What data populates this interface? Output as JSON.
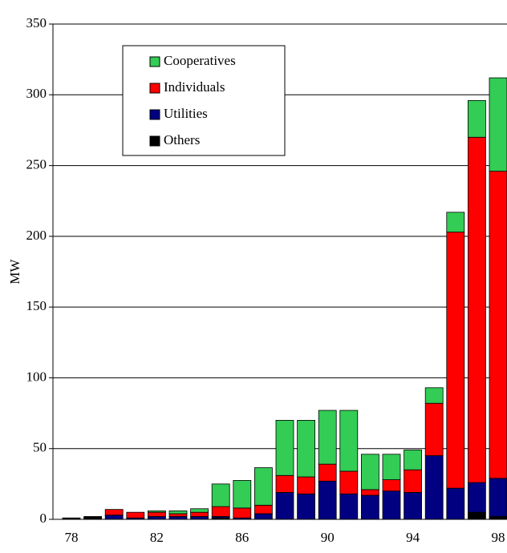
{
  "chart_data": {
    "type": "stacked-bar",
    "y_label": "MW",
    "categories": [
      "78",
      null,
      null,
      null,
      "82",
      null,
      null,
      null,
      "86",
      null,
      null,
      null,
      "90",
      null,
      null,
      null,
      "94",
      null,
      null,
      null,
      "98"
    ],
    "series": [
      {
        "name": "Cooperatives",
        "color": "#33cc55",
        "values": [
          0,
          0,
          0,
          0,
          1,
          2,
          2.5,
          16,
          19.5,
          26.5,
          39,
          40,
          38,
          43,
          25,
          18,
          14,
          11,
          14,
          26,
          66
        ]
      },
      {
        "name": "Individuals",
        "color": "#ff0000",
        "values": [
          0,
          0,
          4,
          4,
          3,
          2,
          3,
          7,
          7,
          6,
          12,
          12,
          12,
          16,
          4,
          8,
          16,
          37,
          181,
          244,
          217
        ]
      },
      {
        "name": "Utilities",
        "color": "#000080",
        "values": [
          0,
          0,
          3,
          1,
          2,
          2,
          2,
          1,
          1,
          4,
          19,
          18,
          27,
          18,
          17,
          20,
          19,
          45,
          22,
          21,
          27
        ]
      },
      {
        "name": "Others",
        "color": "#000000",
        "values": [
          1,
          2,
          0,
          0,
          0,
          0,
          0,
          1,
          0,
          0,
          0,
          0,
          0,
          0,
          0,
          0,
          0,
          0,
          0,
          5,
          2
        ]
      }
    ],
    "ylim": [
      0,
      350
    ],
    "yticks": [
      0,
      50,
      100,
      150,
      200,
      250,
      300,
      350
    ],
    "grid": true
  }
}
